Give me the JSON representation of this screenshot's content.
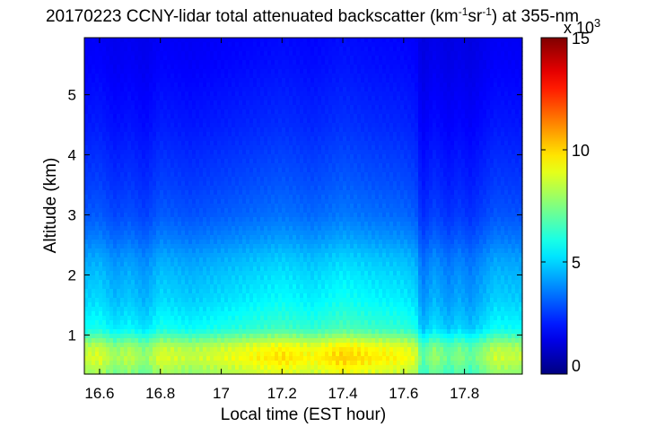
{
  "chart_data": {
    "type": "heatmap",
    "title": {
      "prefix": "20170223 CCNY-lidar total attenuated backscatter (km",
      "sup1": "-1",
      "mid": "sr",
      "sup2": "-1",
      "suffix": ") at 355-nm"
    },
    "xlabel": "Local time (EST hour)",
    "ylabel": "Altitude (km)",
    "xlim": [
      16.55,
      17.99
    ],
    "ylim": [
      0.35,
      5.95
    ],
    "x_ticks": [
      16.6,
      16.8,
      17.0,
      17.2,
      17.4,
      17.6,
      17.8
    ],
    "x_tick_labels": [
      "16.6",
      "16.8",
      "17",
      "17.2",
      "17.4",
      "17.6",
      "17.8"
    ],
    "y_ticks": [
      1,
      2,
      3,
      4,
      5
    ],
    "y_tick_labels": [
      "1",
      "2",
      "3",
      "4",
      "5"
    ],
    "colorbar": {
      "colormap": "jet",
      "range": [
        0,
        15
      ],
      "ticks": [
        0,
        5,
        10,
        15
      ],
      "tick_labels": [
        "0",
        "5",
        "10",
        "15"
      ],
      "multiplier_base": "x 10",
      "multiplier_exp": "3"
    },
    "altitude_profile": {
      "altitude_km": [
        0.4,
        0.6,
        0.8,
        0.95,
        1.1,
        1.3,
        1.6,
        2.0,
        2.3,
        2.6,
        3.0,
        3.5,
        4.0,
        4.5,
        5.0,
        5.5,
        5.95
      ],
      "value": [
        8.6,
        9.4,
        9.0,
        7.6,
        6.3,
        5.9,
        5.4,
        5.0,
        4.6,
        4.0,
        3.4,
        3.0,
        2.7,
        2.4,
        2.2,
        2.0,
        1.9
      ]
    },
    "time_modulation": {
      "time_hr": [
        16.55,
        16.6,
        16.65,
        16.7,
        16.75,
        16.8,
        16.9,
        17.0,
        17.1,
        17.2,
        17.3,
        17.4,
        17.5,
        17.6,
        17.64,
        17.66,
        17.7,
        17.75,
        17.78,
        17.82,
        17.9,
        17.99
      ],
      "factor": [
        0.92,
        0.95,
        0.85,
        0.9,
        0.82,
        0.95,
        0.9,
        0.95,
        1.0,
        1.05,
        1.0,
        1.08,
        1.03,
        1.0,
        0.95,
        0.72,
        0.85,
        0.75,
        0.82,
        0.75,
        0.92,
        0.9
      ]
    }
  }
}
